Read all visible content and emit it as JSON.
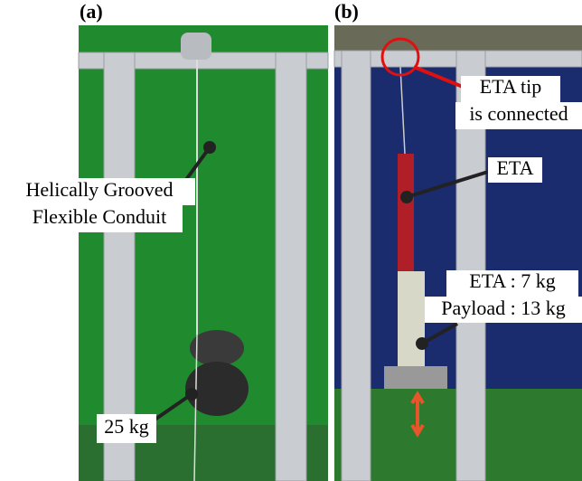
{
  "panels": [
    {
      "label": "(a)",
      "annotations": [
        {
          "lines": [
            "Helically Grooved",
            "Flexible Conduit"
          ]
        },
        {
          "lines": [
            "25 kg"
          ]
        }
      ]
    },
    {
      "label": "(b)",
      "annotations": [
        {
          "lines": [
            "ETA tip",
            "is connected"
          ]
        },
        {
          "lines": [
            "ETA"
          ]
        },
        {
          "lines": [
            "ETA : 7 kg",
            "Payload : 13 kg"
          ]
        }
      ]
    }
  ]
}
